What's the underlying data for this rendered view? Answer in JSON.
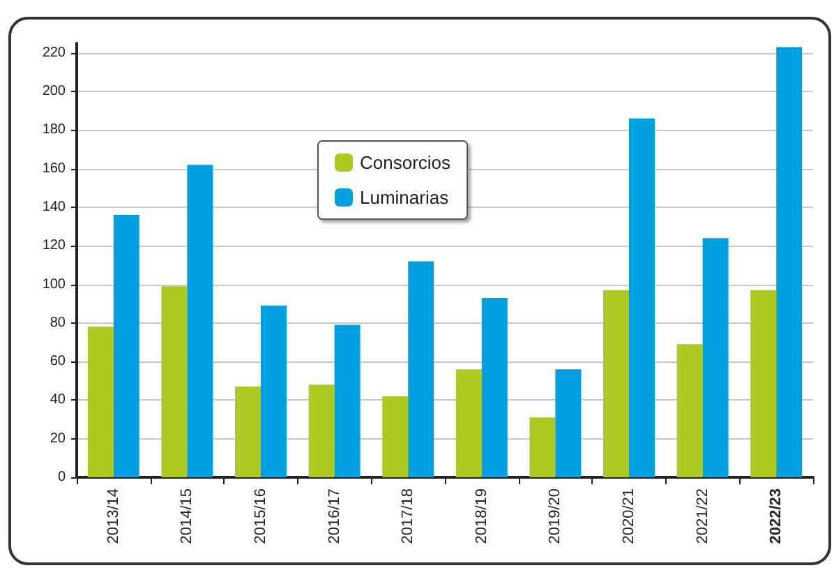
{
  "chart_data": {
    "type": "bar",
    "categories": [
      "2013/14",
      "2014/15",
      "2015/16",
      "2016/17",
      "2017/18",
      "2018/19",
      "2019/20",
      "2020/21",
      "2021/22",
      "2022/23"
    ],
    "series": [
      {
        "name": "Consorcios",
        "color": "#aec922",
        "values": [
          78,
          99,
          47,
          48,
          42,
          56,
          31,
          97,
          69,
          97
        ]
      },
      {
        "name": "Luminarias",
        "color": "#009fe0",
        "values": [
          136,
          162,
          89,
          79,
          112,
          93,
          56,
          186,
          124,
          223
        ]
      }
    ],
    "ylim": [
      0,
      225
    ],
    "yticks": [
      0,
      20,
      40,
      60,
      80,
      100,
      120,
      140,
      160,
      180,
      200,
      220
    ],
    "grid": "y",
    "legend": "top"
  }
}
